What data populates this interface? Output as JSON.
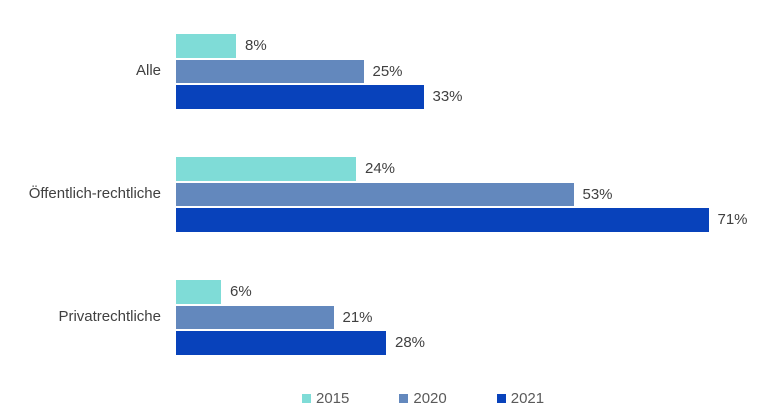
{
  "chart_data": {
    "type": "bar",
    "orientation": "horizontal",
    "title": "",
    "xlabel": "",
    "ylabel": "",
    "categories": [
      "Alle",
      "Öffentlich-rechtliche",
      "Privatrechtliche"
    ],
    "series": [
      {
        "name": "2015",
        "color": "#7FDCD7",
        "values": [
          8,
          24,
          6
        ]
      },
      {
        "name": "2020",
        "color": "#6388BD",
        "values": [
          25,
          53,
          21
        ]
      },
      {
        "name": "2021",
        "color": "#0842BB",
        "values": [
          33,
          71,
          28
        ]
      }
    ],
    "value_suffix": "%",
    "xlim": [
      0,
      79
    ],
    "grid": false,
    "legend_position": "bottom",
    "legend_labels": [
      "2015",
      "2020",
      "2021"
    ]
  },
  "style": {
    "background": "#FFFFFF",
    "category_label_color": "#404040",
    "value_label_color": "#404040",
    "legend_label_color": "#5A5A5A"
  }
}
